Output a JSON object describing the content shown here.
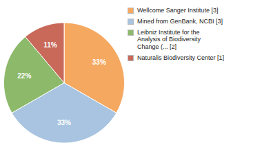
{
  "chart_data": {
    "type": "pie",
    "categories": [
      "Wellcome Sanger Institute [3]",
      "Mined from GenBank, NCBI [3]",
      "Leibniz Institute for the\nAnalysis of Biodiversity\nChange (... [2]",
      "Naturalis Biodiversity Center [1]"
    ],
    "values": [
      33,
      33,
      22,
      11
    ],
    "value_labels": [
      "33%",
      "33%",
      "22%",
      "11%"
    ],
    "colors": [
      "#F5A860",
      "#A8C4E0",
      "#8DB96A",
      "#C8695A"
    ],
    "data_labels": true,
    "legend": "right"
  }
}
